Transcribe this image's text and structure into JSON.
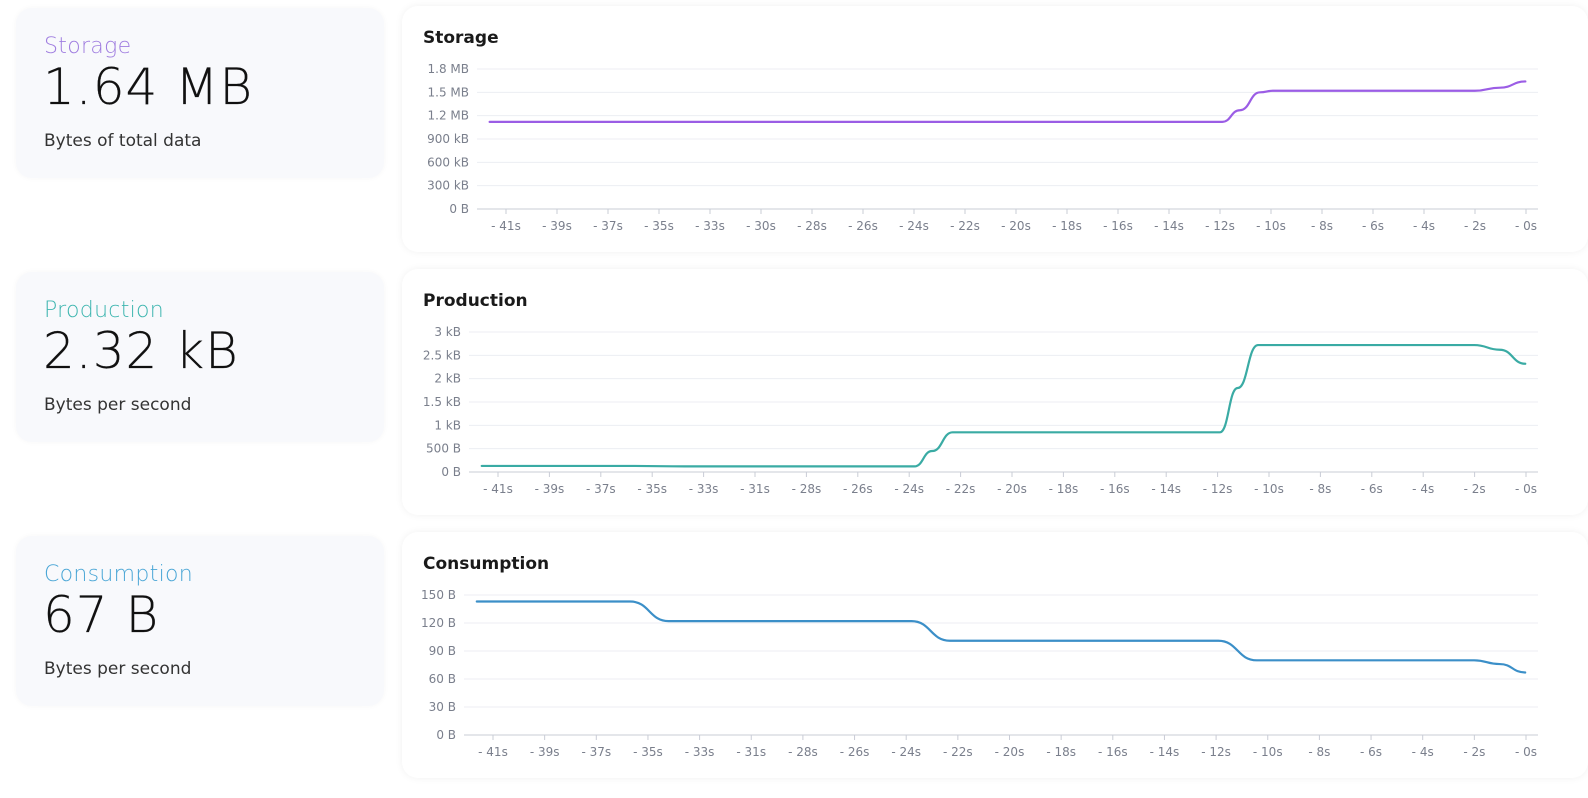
{
  "cards": [
    {
      "label": "Storage",
      "value": "1.64 MB",
      "subtitle": "Bytes of total data",
      "color": "#a07ee0"
    },
    {
      "label": "Production",
      "value": "2.32 kB",
      "subtitle": "Bytes per second",
      "color": "#3fb6b0"
    },
    {
      "label": "Consumption",
      "value": "67 B",
      "subtitle": "Bytes per second",
      "color": "#4aa6d6"
    }
  ],
  "chart_data": [
    {
      "type": "line",
      "title": "Storage",
      "color": "#9b5de5",
      "y_unit": "kB",
      "ylim": [
        0,
        1800
      ],
      "y_ticks": [
        0,
        300,
        600,
        900,
        1200,
        1500,
        1800
      ],
      "y_tick_labels": [
        "0 B",
        "300 kB",
        "600 kB",
        "900 kB",
        "1.2 MB",
        "1.5 MB",
        "1.8 MB"
      ],
      "x_tick_labels": [
        "- 41s",
        "- 39s",
        "- 37s",
        "- 35s",
        "- 33s",
        "- 30s",
        "- 28s",
        "- 26s",
        "- 24s",
        "- 22s",
        "- 20s",
        "- 18s",
        "- 16s",
        "- 14s",
        "- 12s",
        "- 10s",
        "- 8s",
        "- 6s",
        "- 4s",
        "- 2s",
        "- 0s"
      ],
      "xlim": [
        -41.5,
        0.5
      ],
      "x": [
        -41,
        -12,
        -11.3,
        -10.5,
        -10,
        -2,
        -1,
        0
      ],
      "y": [
        1120,
        1120,
        1270,
        1500,
        1520,
        1520,
        1560,
        1640
      ],
      "grid": true
    },
    {
      "type": "line",
      "title": "Production",
      "color": "#3aaba4",
      "y_unit": "kB",
      "ylim": [
        0,
        3
      ],
      "y_ticks": [
        0,
        0.5,
        1,
        1.5,
        2,
        2.5,
        3
      ],
      "y_tick_labels": [
        "0 B",
        "500 B",
        "1 kB",
        "1.5 kB",
        "2 kB",
        "2.5 kB",
        "3 kB"
      ],
      "x_tick_labels": [
        "- 41s",
        "- 39s",
        "- 37s",
        "- 35s",
        "- 33s",
        "- 31s",
        "- 28s",
        "- 26s",
        "- 24s",
        "- 22s",
        "- 20s",
        "- 18s",
        "- 16s",
        "- 14s",
        "- 12s",
        "- 10s",
        "- 8s",
        "- 6s",
        "- 4s",
        "- 2s",
        "- 0s"
      ],
      "xlim": [
        -41.5,
        0.5
      ],
      "x": [
        -41,
        -35,
        -33,
        -24,
        -23.3,
        -22.5,
        -12,
        -11.3,
        -10.5,
        -2,
        -1,
        0
      ],
      "y": [
        0.13,
        0.13,
        0.12,
        0.12,
        0.45,
        0.85,
        0.85,
        1.8,
        2.72,
        2.72,
        2.62,
        2.32
      ],
      "grid": true
    },
    {
      "type": "line",
      "title": "Consumption",
      "color": "#3b8fc8",
      "y_unit": "B",
      "ylim": [
        0,
        150
      ],
      "y_ticks": [
        0,
        30,
        60,
        90,
        120,
        150
      ],
      "y_tick_labels": [
        "0 B",
        "30 B",
        "60 B",
        "90 B",
        "120 B",
        "150 B"
      ],
      "x_tick_labels": [
        "- 41s",
        "- 39s",
        "- 37s",
        "- 35s",
        "- 33s",
        "- 31s",
        "- 28s",
        "- 26s",
        "- 24s",
        "- 22s",
        "- 20s",
        "- 18s",
        "- 16s",
        "- 14s",
        "- 12s",
        "- 10s",
        "- 8s",
        "- 6s",
        "- 4s",
        "- 2s",
        "- 0s"
      ],
      "xlim": [
        -41.5,
        0.5
      ],
      "x": [
        -41,
        -35,
        -33.5,
        -24,
        -22.5,
        -12,
        -10.5,
        -2,
        -1,
        0
      ],
      "y": [
        143,
        143,
        122,
        122,
        101,
        101,
        80,
        80,
        76,
        67
      ],
      "grid": true
    }
  ]
}
